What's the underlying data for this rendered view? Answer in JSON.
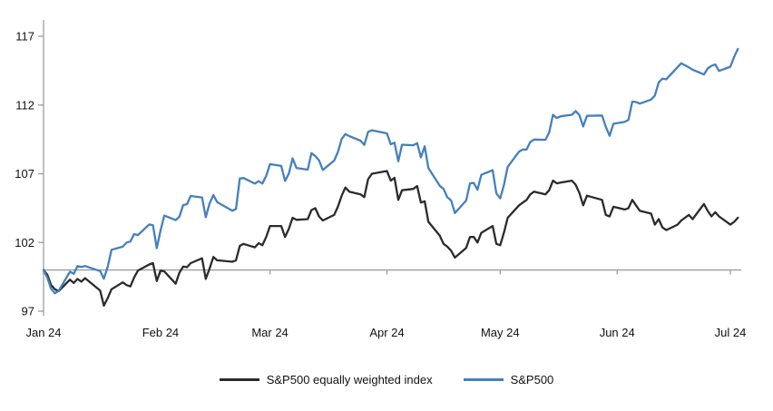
{
  "chart_data": {
    "type": "line",
    "title": "",
    "xlabel": "",
    "ylabel": "",
    "ylim": [
      97,
      117
    ],
    "y_ticks": [
      97,
      102,
      107,
      112,
      117
    ],
    "x_tick_labels": [
      "Jan 24",
      "Feb 24",
      "Mar 24",
      "Apr 24",
      "May 24",
      "Jun 24",
      "Jul 24"
    ],
    "x_tick_day_offsets": [
      0,
      31,
      60,
      91,
      121,
      152,
      182
    ],
    "baseline_value": 100,
    "grid": "off",
    "legend_position": "bottom-center",
    "axis_color": "#9e9e9e",
    "dates": [
      "01-01",
      "01-02",
      "01-03",
      "01-04",
      "01-05",
      "01-08",
      "01-09",
      "01-10",
      "01-11",
      "01-12",
      "01-16",
      "01-17",
      "01-18",
      "01-19",
      "01-22",
      "01-23",
      "01-24",
      "01-25",
      "01-26",
      "01-29",
      "01-30",
      "01-31",
      "02-01",
      "02-02",
      "02-05",
      "02-06",
      "02-07",
      "02-08",
      "02-09",
      "02-12",
      "02-13",
      "02-14",
      "02-15",
      "02-16",
      "02-20",
      "02-21",
      "02-22",
      "02-23",
      "02-26",
      "02-27",
      "02-28",
      "02-29",
      "03-01",
      "03-04",
      "03-05",
      "03-06",
      "03-07",
      "03-08",
      "03-11",
      "03-12",
      "03-13",
      "03-14",
      "03-15",
      "03-18",
      "03-19",
      "03-20",
      "03-21",
      "03-22",
      "03-25",
      "03-26",
      "03-27",
      "03-28",
      "04-01",
      "04-02",
      "04-03",
      "04-04",
      "04-05",
      "04-08",
      "04-09",
      "04-10",
      "04-11",
      "04-12",
      "04-15",
      "04-16",
      "04-17",
      "04-18",
      "04-19",
      "04-22",
      "04-23",
      "04-24",
      "04-25",
      "04-26",
      "04-29",
      "04-30",
      "05-01",
      "05-02",
      "05-03",
      "05-06",
      "05-07",
      "05-08",
      "05-09",
      "05-10",
      "05-13",
      "05-14",
      "05-15",
      "05-16",
      "05-17",
      "05-20",
      "05-21",
      "05-22",
      "05-23",
      "05-24",
      "05-28",
      "05-29",
      "05-30",
      "05-31",
      "06-03",
      "06-04",
      "06-05",
      "06-06",
      "06-07",
      "06-10",
      "06-11",
      "06-12",
      "06-13",
      "06-14",
      "06-17",
      "06-18",
      "06-20",
      "06-21",
      "06-24",
      "06-25",
      "06-26",
      "06-27",
      "06-28",
      "07-01",
      "07-02",
      "07-03"
    ],
    "series": [
      {
        "name": "S&P500 equally weighted index",
        "color": "#2b2b2b",
        "values": [
          100,
          99.65,
          98.9,
          98.6,
          98.45,
          99.3,
          99.05,
          99.35,
          99.15,
          99.4,
          98.5,
          97.4,
          97.95,
          98.6,
          99.1,
          98.9,
          98.8,
          99.45,
          99.95,
          100.4,
          100.5,
          99.2,
          99.95,
          99.9,
          99.0,
          99.8,
          100.25,
          100.2,
          100.5,
          100.85,
          99.35,
          100.1,
          100.95,
          100.7,
          100.6,
          100.7,
          101.75,
          101.9,
          101.65,
          101.95,
          101.8,
          102.4,
          103.2,
          103.2,
          102.4,
          103.0,
          103.8,
          103.65,
          103.7,
          104.35,
          104.5,
          103.9,
          103.6,
          104.0,
          104.6,
          105.4,
          106.0,
          105.7,
          105.5,
          105.3,
          106.6,
          107.0,
          107.2,
          106.5,
          106.7,
          105.1,
          105.8,
          105.9,
          106.1,
          104.9,
          105.0,
          103.5,
          102.5,
          101.9,
          101.7,
          101.4,
          100.9,
          101.6,
          102.4,
          102.4,
          102.0,
          102.7,
          103.2,
          101.9,
          101.8,
          102.7,
          103.8,
          104.7,
          104.9,
          105.1,
          105.5,
          105.7,
          105.5,
          105.8,
          106.5,
          106.3,
          106.35,
          106.5,
          106.2,
          105.6,
          104.7,
          105.4,
          105.1,
          104.0,
          103.9,
          104.6,
          104.4,
          104.5,
          105.1,
          104.7,
          104.3,
          104.1,
          103.3,
          103.7,
          103.1,
          102.9,
          103.3,
          103.6,
          104.0,
          103.7,
          104.8,
          104.3,
          103.9,
          104.2,
          103.9,
          103.3,
          103.5,
          103.8
        ]
      },
      {
        "name": "S&P500",
        "color": "#4580bd",
        "values": [
          100,
          99.43,
          98.64,
          98.3,
          98.48,
          99.87,
          99.72,
          100.29,
          100.22,
          100.29,
          99.92,
          99.36,
          100.23,
          101.47,
          101.69,
          101.99,
          102.07,
          102.61,
          102.54,
          103.31,
          103.25,
          101.59,
          102.86,
          103.96,
          103.63,
          103.87,
          104.72,
          104.78,
          105.38,
          105.28,
          103.84,
          104.84,
          105.45,
          104.94,
          104.31,
          104.44,
          106.65,
          106.69,
          106.28,
          106.46,
          106.29,
          106.84,
          107.7,
          107.57,
          106.47,
          107.02,
          108.12,
          107.42,
          107.3,
          108.5,
          108.29,
          107.98,
          107.28,
          107.96,
          108.57,
          109.53,
          109.89,
          109.74,
          109.4,
          109.09,
          110.04,
          110.16,
          109.94,
          109.14,
          109.26,
          107.91,
          109.11,
          109.07,
          109.23,
          108.19,
          109.0,
          107.41,
          106.12,
          105.9,
          105.29,
          105.06,
          104.14,
          105.05,
          106.3,
          106.33,
          105.84,
          106.92,
          107.26,
          105.57,
          105.21,
          106.17,
          107.5,
          108.61,
          108.76,
          108.76,
          109.31,
          109.49,
          109.47,
          110.0,
          111.29,
          111.05,
          111.18,
          111.29,
          111.56,
          111.26,
          110.44,
          111.21,
          111.24,
          110.42,
          109.76,
          110.64,
          110.77,
          110.93,
          112.25,
          112.22,
          112.1,
          112.39,
          112.69,
          113.65,
          113.92,
          113.87,
          114.75,
          115.04,
          114.74,
          114.57,
          114.22,
          114.66,
          114.85,
          114.95,
          114.48,
          114.79,
          115.5,
          116.08
        ]
      }
    ]
  }
}
